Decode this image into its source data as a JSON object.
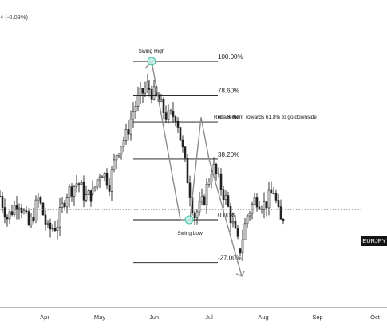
{
  "header": {
    "change_text": "4 (-0.08%)"
  },
  "symbol_badge": "EURJPY",
  "colors": {
    "candles": "#222222",
    "fib_lines": "#111111",
    "zigzag": "#8c8c8c",
    "swing_marker_fill": "#bff0e6",
    "swing_marker_stroke": "#3fbfa3",
    "last_price_line": "#9a9a9a",
    "axis_line": "#777777"
  },
  "fib_levels": [
    {
      "label": "100.00%"
    },
    {
      "label": "78.60%"
    },
    {
      "label": "61.80%",
      "annotation": "Retracement Towards 61.8% to go downside"
    },
    {
      "label": "38.20%"
    },
    {
      "label": "0.00%"
    },
    {
      "label": "-27.00%"
    }
  ],
  "swing_high_label": "Swing High",
  "swing_low_label": "Swing Low",
  "chart_data": {
    "type": "candlestick",
    "title": "",
    "x_ticks": [
      "Apr",
      "May",
      "Jun",
      "Jul",
      "Aug",
      "Sep",
      "Oct"
    ],
    "series": [
      {
        "start": 131.8,
        "end": 131.2,
        "points": [
          [
            0,
            131.9
          ],
          [
            0.08,
            130.7
          ],
          [
            0.2,
            131.7
          ],
          [
            0.32,
            130.2
          ],
          [
            0.42,
            131.8
          ],
          [
            0.52,
            130.0
          ],
          [
            0.62,
            130.3
          ],
          [
            0.72,
            132.0
          ],
          [
            0.85,
            132.7
          ],
          [
            0.93,
            131.8
          ],
          [
            1.0,
            132.0
          ]
        ]
      },
      {
        "start": 132.0,
        "end": 135.6,
        "points": [
          [
            0,
            132.0
          ],
          [
            0.15,
            133.4
          ],
          [
            0.3,
            132.6
          ],
          [
            0.45,
            134.5
          ],
          [
            0.6,
            135.2
          ],
          [
            0.75,
            136.8
          ],
          [
            0.9,
            137.6
          ],
          [
            1.0,
            138.0
          ]
        ]
      },
      {
        "start": 137.5,
        "end": 129.0,
        "points": [
          [
            0,
            137.8
          ],
          [
            0.08,
            137.3
          ],
          [
            0.2,
            136.2
          ],
          [
            0.3,
            136.4
          ],
          [
            0.42,
            133.0
          ],
          [
            0.5,
            130.8
          ],
          [
            0.6,
            131.6
          ],
          [
            0.7,
            133.6
          ],
          [
            0.85,
            131.7
          ],
          [
            1.0,
            129.0
          ]
        ]
      },
      {
        "start": 129.2,
        "end": 131.0,
        "points": [
          [
            0,
            129.0
          ],
          [
            0.15,
            130.8
          ],
          [
            0.35,
            131.8
          ],
          [
            0.55,
            131.4
          ],
          [
            0.75,
            132.2
          ],
          [
            0.9,
            130.4
          ],
          [
            1.0,
            131.0
          ]
        ]
      }
    ],
    "swing_high": 139.3,
    "swing_low": 130.6,
    "projection_end": 127.5,
    "last_price": 131.15
  }
}
